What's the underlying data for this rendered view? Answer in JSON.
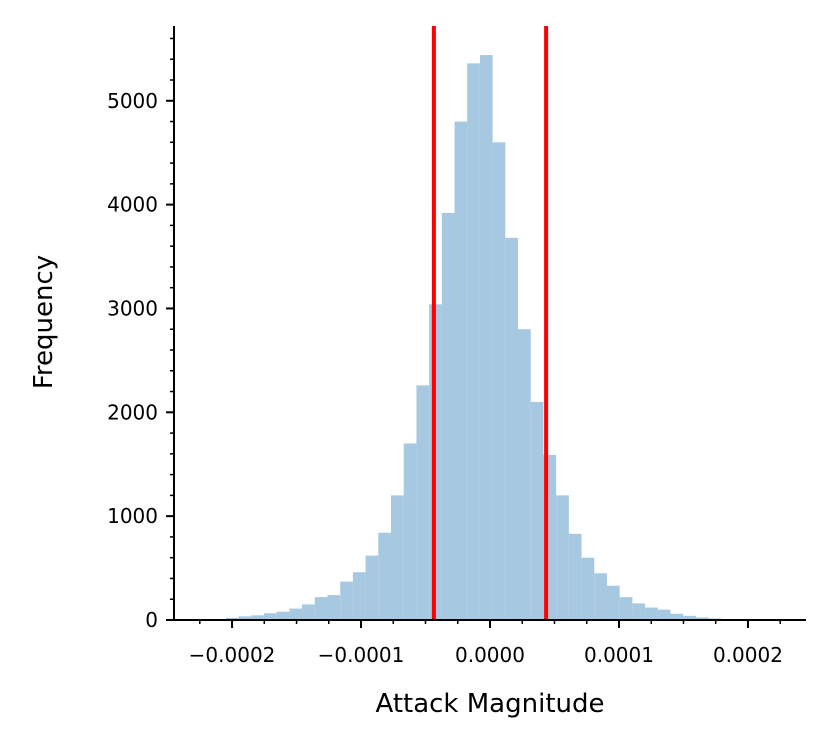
{
  "chart_data": {
    "type": "bar",
    "xlabel": "Attack Magnitude",
    "ylabel": "Frequency",
    "xlim": [
      -0.000245,
      0.000245
    ],
    "ylim": [
      0,
      5720
    ],
    "x_ticks": [
      {
        "value": -0.0002,
        "label": "−0.0002"
      },
      {
        "value": -0.0001,
        "label": "−0.0001"
      },
      {
        "value": 0.0,
        "label": "0.0000"
      },
      {
        "value": 0.0001,
        "label": "0.0001"
      },
      {
        "value": 0.0002,
        "label": "0.0002"
      }
    ],
    "y_ticks": [
      {
        "value": 0,
        "label": "0"
      },
      {
        "value": 1000,
        "label": "1000"
      },
      {
        "value": 2000,
        "label": "2000"
      },
      {
        "value": 3000,
        "label": "3000"
      },
      {
        "value": 4000,
        "label": "4000"
      },
      {
        "value": 5000,
        "label": "5000"
      }
    ],
    "bin_start": -0.0002245,
    "bin_width": 9.85e-06,
    "values": [
      5,
      10,
      20,
      35,
      45,
      65,
      80,
      110,
      150,
      220,
      240,
      370,
      460,
      620,
      840,
      1200,
      1700,
      2260,
      3040,
      3920,
      4800,
      5360,
      5440,
      4600,
      3680,
      2800,
      2100,
      1590,
      1200,
      830,
      600,
      450,
      330,
      220,
      160,
      120,
      100,
      60,
      40,
      25,
      15,
      10,
      5
    ],
    "vlines": [
      -4.35e-05,
      4.35e-05
    ],
    "colors": {
      "bars": "#a6c8e0",
      "vlines": "#ff0000",
      "axes": "#000000"
    },
    "grid": false,
    "legend": "none"
  }
}
